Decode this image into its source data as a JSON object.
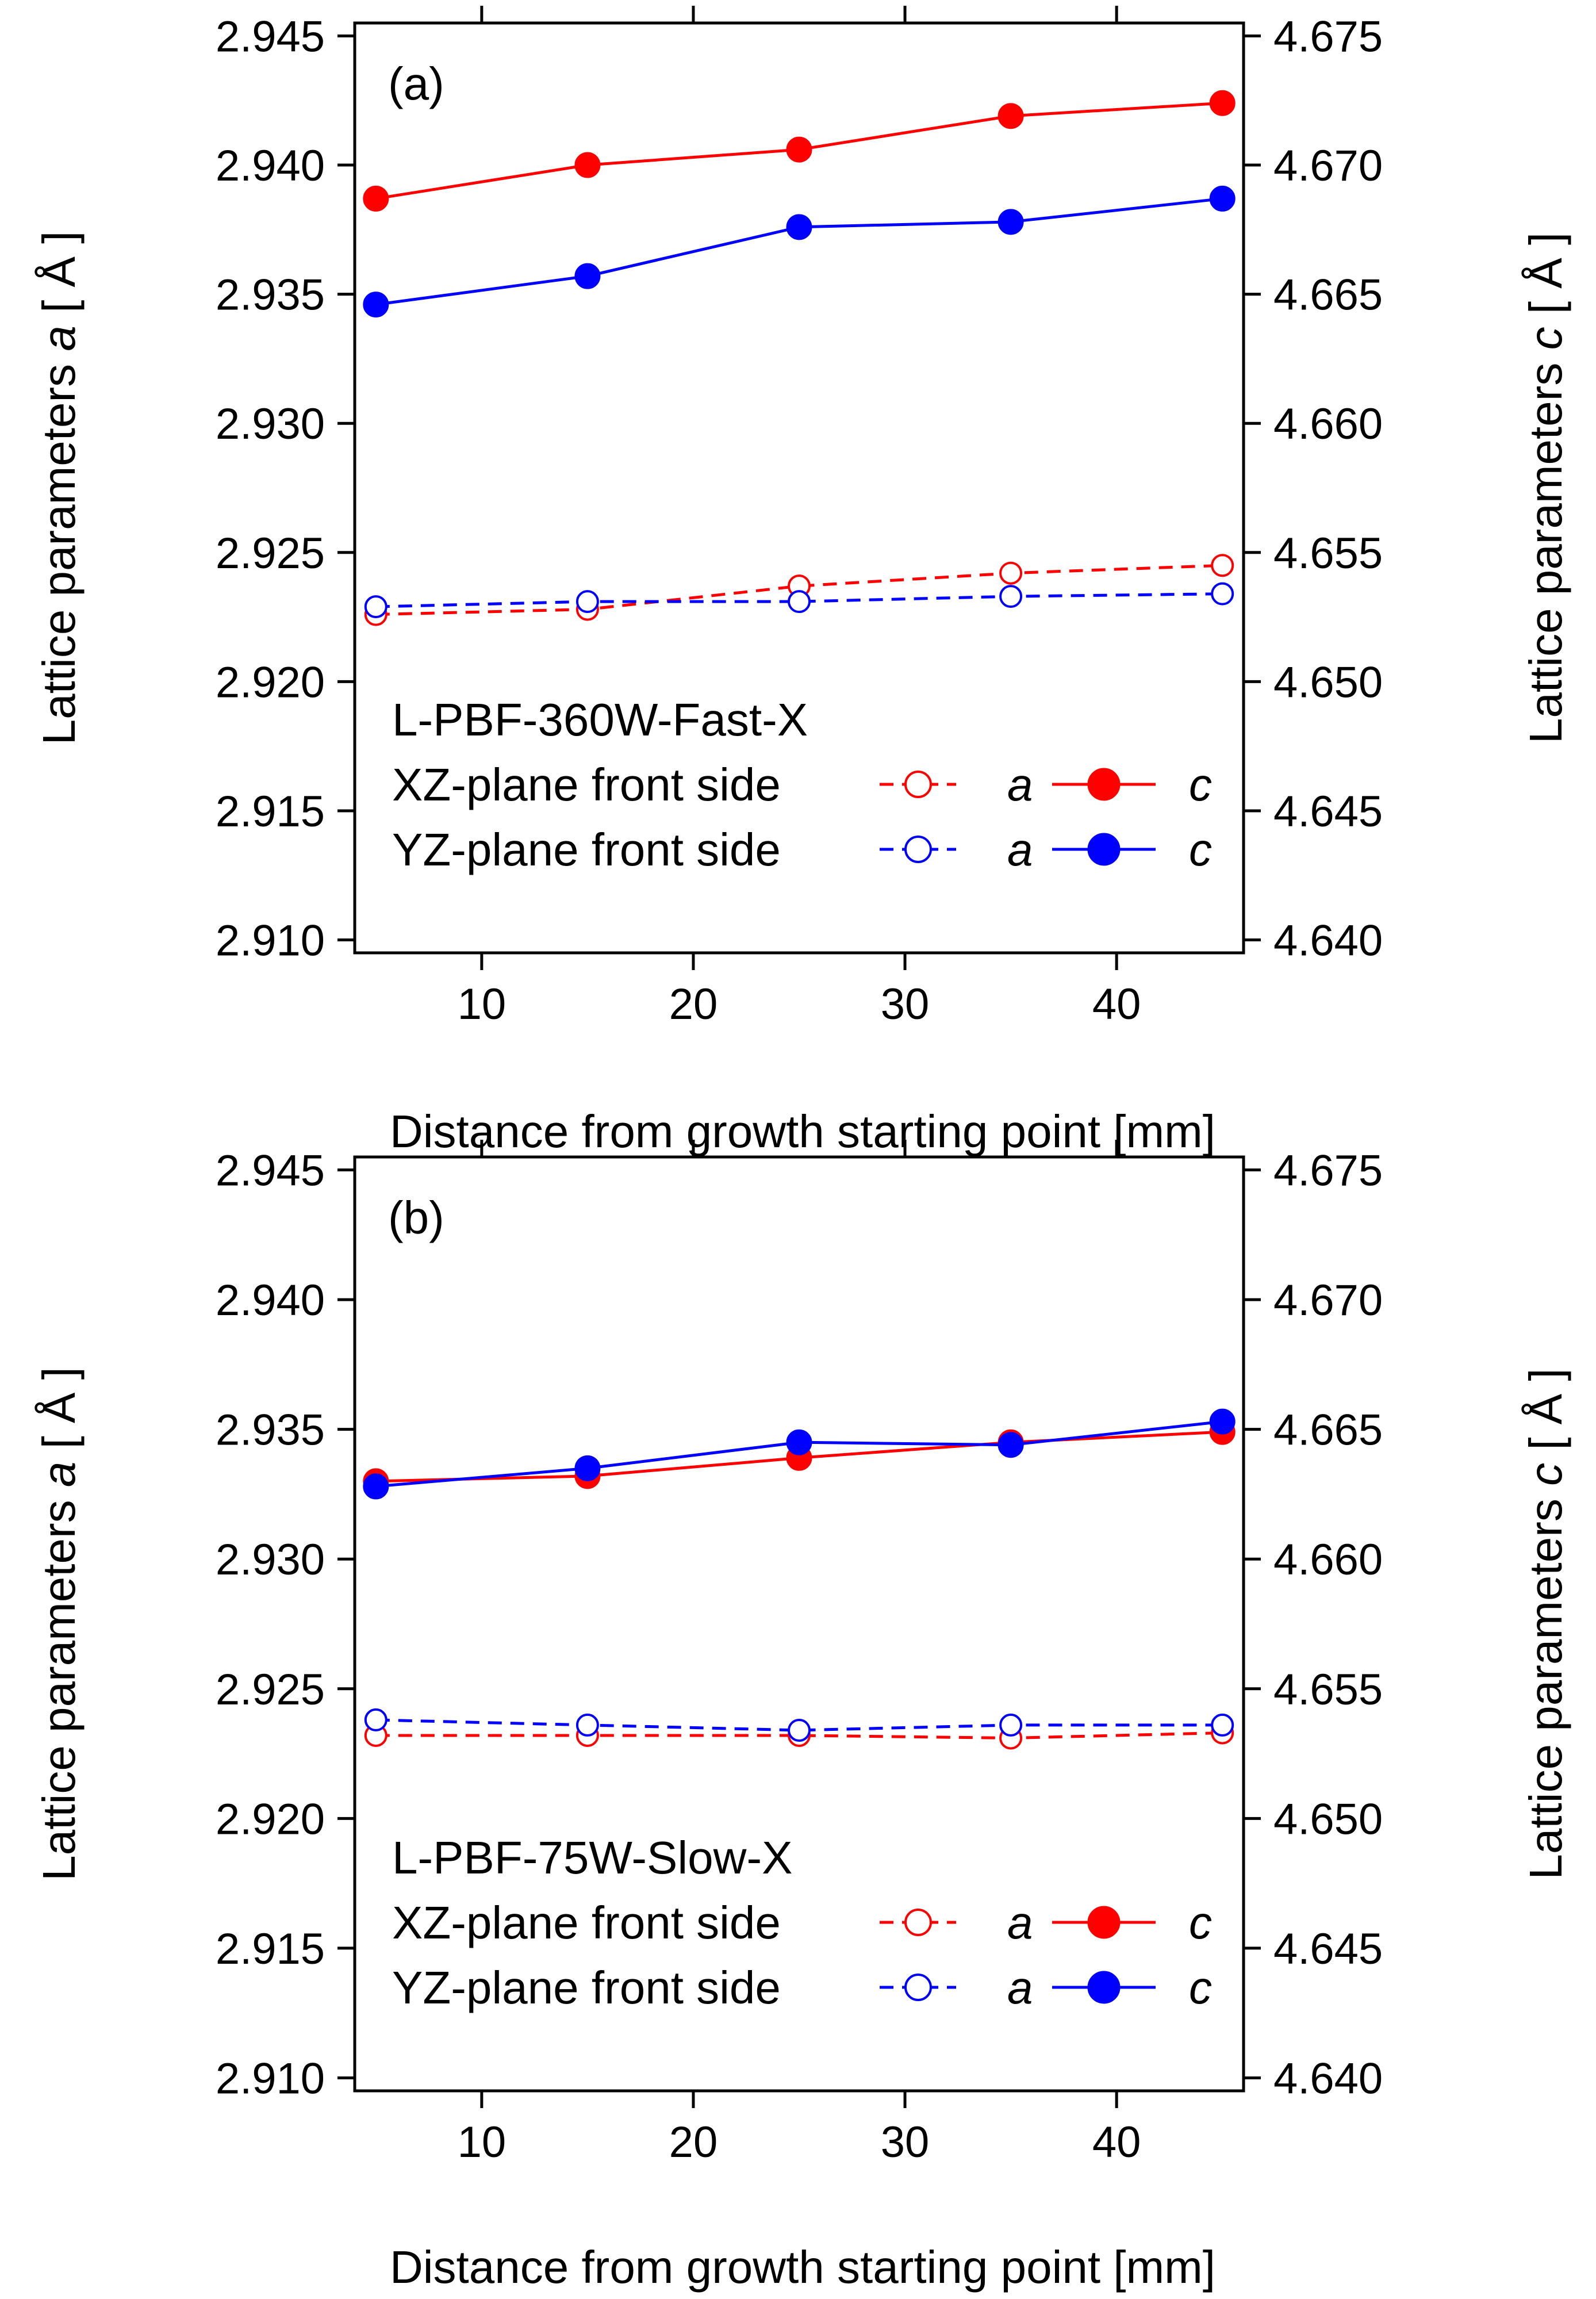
{
  "chart_data": [
    {
      "type": "line",
      "panel_label": "(a)",
      "sample": "L-PBF-360W-Fast-X",
      "x": [
        5,
        15,
        25,
        35,
        45
      ],
      "xlabel": "Distance from growth starting point [mm]",
      "xlim": [
        4,
        46
      ],
      "xticks": [
        10,
        20,
        30,
        40
      ],
      "ylabel_left": {
        "prefix": "Lattice parameters ",
        "var": "a",
        "unit": " [ Å ]"
      },
      "ylabel_right": {
        "prefix": "Lattice parameters ",
        "var": "c",
        "unit": " [ Å ]"
      },
      "ylim_left": [
        2.9095,
        2.9455
      ],
      "ylim_right": [
        4.6395,
        4.6755
      ],
      "yticks_left": [
        "2.945",
        "2.940",
        "2.935",
        "2.930",
        "2.925",
        "2.920",
        "2.915",
        "2.910"
      ],
      "yticks_right": [
        "4.675",
        "4.670",
        "4.665",
        "4.660",
        "4.655",
        "4.650",
        "4.645",
        "4.640"
      ],
      "series": [
        {
          "name": "XZ-plane front side a",
          "axis": "left",
          "color": "#ff0000",
          "dashed": true,
          "filled": false,
          "values": [
            2.9226,
            2.9228,
            2.9237,
            2.9242,
            2.9245
          ]
        },
        {
          "name": "YZ-plane front side a",
          "axis": "left",
          "color": "#0000ff",
          "dashed": true,
          "filled": false,
          "values": [
            2.9229,
            2.9231,
            2.9231,
            2.9233,
            2.9234
          ]
        },
        {
          "name": "XZ-plane front side c",
          "axis": "right",
          "color": "#ff0000",
          "dashed": false,
          "filled": true,
          "values": [
            4.6687,
            4.67,
            4.6706,
            4.6719,
            4.6724
          ]
        },
        {
          "name": "YZ-plane front side c",
          "axis": "right",
          "color": "#0000ff",
          "dashed": false,
          "filled": true,
          "values": [
            4.6646,
            4.6657,
            4.6676,
            4.6678,
            4.6687
          ]
        }
      ],
      "legend_rows": [
        {
          "label": "XZ-plane front side",
          "a": "a",
          "c": "c",
          "color": "#ff0000"
        },
        {
          "label": "YZ-plane front side",
          "a": "a",
          "c": "c",
          "color": "#0000ff"
        }
      ]
    },
    {
      "type": "line",
      "panel_label": "(b)",
      "sample": "L-PBF-75W-Slow-X",
      "x": [
        5,
        15,
        25,
        35,
        45
      ],
      "xlabel": "Distance from growth starting point [mm]",
      "xlim": [
        4,
        46
      ],
      "xticks": [
        10,
        20,
        30,
        40
      ],
      "ylabel_left": {
        "prefix": "Lattice parameters ",
        "var": "a",
        "unit": " [ Å ]"
      },
      "ylabel_right": {
        "prefix": "Lattice parameters ",
        "var": "c",
        "unit": " [ Å ]"
      },
      "ylim_left": [
        2.9095,
        2.9455
      ],
      "ylim_right": [
        4.6395,
        4.6755
      ],
      "yticks_left": [
        "2.945",
        "2.940",
        "2.935",
        "2.930",
        "2.925",
        "2.920",
        "2.915",
        "2.910"
      ],
      "yticks_right": [
        "4.675",
        "4.670",
        "4.665",
        "4.660",
        "4.655",
        "4.650",
        "4.645",
        "4.640"
      ],
      "series": [
        {
          "name": "XZ-plane front side a",
          "axis": "left",
          "color": "#ff0000",
          "dashed": true,
          "filled": false,
          "values": [
            2.9232,
            2.9232,
            2.9232,
            2.9231,
            2.9233
          ]
        },
        {
          "name": "YZ-plane front side a",
          "axis": "left",
          "color": "#0000ff",
          "dashed": true,
          "filled": false,
          "values": [
            2.9238,
            2.9236,
            2.9234,
            2.9236,
            2.9236
          ]
        },
        {
          "name": "XZ-plane front side c",
          "axis": "right",
          "color": "#ff0000",
          "dashed": false,
          "filled": true,
          "values": [
            4.663,
            4.6632,
            4.6639,
            4.6645,
            4.6649
          ]
        },
        {
          "name": "YZ-plane front side c",
          "axis": "right",
          "color": "#0000ff",
          "dashed": false,
          "filled": true,
          "values": [
            4.6628,
            4.6635,
            4.6645,
            4.6644,
            4.6653
          ]
        }
      ],
      "legend_rows": [
        {
          "label": "XZ-plane front side",
          "a": "a",
          "c": "c",
          "color": "#ff0000"
        },
        {
          "label": "YZ-plane front side",
          "a": "a",
          "c": "c",
          "color": "#0000ff"
        }
      ]
    }
  ]
}
